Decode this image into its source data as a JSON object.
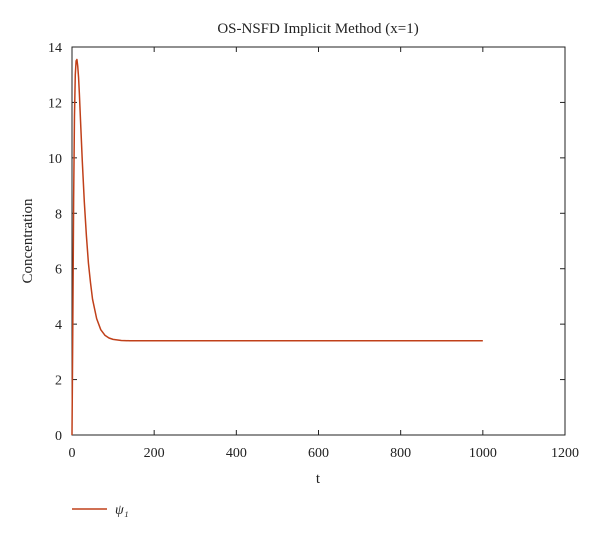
{
  "chart_data": {
    "type": "line",
    "title": "OS-NSFD Implicit Method (x=1)",
    "xlabel": "t",
    "ylabel": "Concentration",
    "xlim": [
      0,
      1200
    ],
    "ylim": [
      0,
      14
    ],
    "xticks": [
      0,
      200,
      400,
      600,
      800,
      1000,
      1200
    ],
    "yticks": [
      0,
      2,
      4,
      6,
      8,
      10,
      12,
      14
    ],
    "grid": false,
    "legend_position": "bottom-left",
    "series": [
      {
        "name": "ψ₁",
        "color": "#c0401a",
        "x": [
          0,
          2,
          4,
          6,
          8,
          10,
          12,
          14,
          16,
          18,
          20,
          25,
          30,
          35,
          40,
          45,
          50,
          60,
          70,
          80,
          90,
          100,
          120,
          140,
          160,
          200,
          300,
          400,
          500,
          600,
          700,
          800,
          900,
          1000
        ],
        "y": [
          0,
          4.0,
          8.5,
          11.5,
          13.0,
          13.5,
          13.55,
          13.3,
          12.9,
          12.3,
          11.6,
          9.9,
          8.4,
          7.2,
          6.2,
          5.5,
          4.9,
          4.2,
          3.8,
          3.6,
          3.5,
          3.45,
          3.41,
          3.4,
          3.4,
          3.4,
          3.4,
          3.4,
          3.4,
          3.4,
          3.4,
          3.4,
          3.4,
          3.4
        ]
      }
    ]
  }
}
